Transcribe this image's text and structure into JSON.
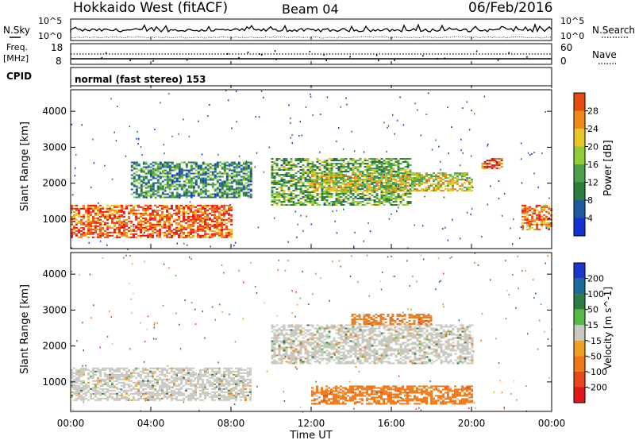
{
  "header": {
    "station": "Hokkaido West (fitACF)",
    "beam": "Beam 04",
    "date": "06/Feb/2016"
  },
  "noise_panel": {
    "left_label": "N.Sky",
    "right_label": "N.Search",
    "top_tick": "10^5",
    "bottom_tick": "10^0"
  },
  "freq_panel": {
    "left_label_line1": "Freq.",
    "left_label_line2": "[MHz]",
    "left_top_tick": "18",
    "left_bottom_tick": "8",
    "right_label": "Nave",
    "right_top_tick": "60",
    "right_bottom_tick": "0"
  },
  "cpid_panel": {
    "label": "CPID",
    "text": "normal (fast stereo) 153"
  },
  "x_axis": {
    "label": "Time UT",
    "ticks": [
      "00:00",
      "04:00",
      "08:00",
      "12:00",
      "16:00",
      "20:00",
      "00:00"
    ]
  },
  "colors": {
    "power_scale": [
      "#1432d2",
      "#1e5aa0",
      "#2d7d3c",
      "#4aa14a",
      "#8fce3a",
      "#e8c62a",
      "#f08a1a",
      "#e84a14",
      "#e81414"
    ],
    "velocity_scale": [
      "#1b36c8",
      "#1c6a9c",
      "#2e7d46",
      "#58b848",
      "#c8c8c0",
      "#f0a020",
      "#f07818",
      "#e84818",
      "#e01818"
    ]
  },
  "chart_data": [
    {
      "type": "heatmap",
      "panel": "power",
      "ylabel": "Slant Range [km]",
      "xlabel": "Time UT",
      "ylim": [
        180,
        4600
      ],
      "yticks": [
        1000,
        2000,
        3000,
        4000
      ],
      "xlim_hours": [
        0,
        24
      ],
      "colorbar": {
        "label": "Power [dB]",
        "ticks": [
          "4",
          "8",
          "12",
          "16",
          "20",
          "24",
          "28"
        ],
        "range": [
          0,
          32
        ]
      },
      "regions_approx": [
        {
          "hours": [
            0,
            8
          ],
          "range_km": [
            500,
            1400
          ],
          "power_db": 26
        },
        {
          "hours": [
            3,
            9
          ],
          "range_km": [
            1600,
            2600
          ],
          "power_db": 10
        },
        {
          "hours": [
            10,
            17
          ],
          "range_km": [
            1400,
            2700
          ],
          "power_db": 13
        },
        {
          "hours": [
            12,
            20
          ],
          "range_km": [
            1800,
            2300
          ],
          "power_db": 18
        },
        {
          "hours": [
            20.5,
            21.5
          ],
          "range_km": [
            2400,
            2700
          ],
          "power_db": 26
        },
        {
          "hours": [
            22.5,
            24
          ],
          "range_km": [
            700,
            1400
          ],
          "power_db": 24
        }
      ]
    },
    {
      "type": "heatmap",
      "panel": "velocity",
      "ylabel": "Slant Range [km]",
      "xlabel": "Time UT",
      "ylim": [
        180,
        4600
      ],
      "yticks": [
        1000,
        2000,
        3000,
        4000
      ],
      "xlim_hours": [
        0,
        24
      ],
      "colorbar": {
        "label": "Velocity [m s^-1]",
        "ticks": [
          "200",
          "100",
          "50",
          "15",
          "-15",
          "-50",
          "-100",
          "-200"
        ],
        "range": [
          -250,
          250
        ]
      },
      "regions_approx": [
        {
          "hours": [
            0,
            9
          ],
          "range_km": [
            500,
            1400
          ],
          "velocity": 0
        },
        {
          "hours": [
            10,
            20
          ],
          "range_km": [
            1500,
            2600
          ],
          "velocity": 0
        },
        {
          "hours": [
            14,
            18
          ],
          "range_km": [
            2600,
            2900
          ],
          "velocity": -60
        },
        {
          "hours": [
            12,
            20
          ],
          "range_km": [
            400,
            900
          ],
          "velocity": -60
        }
      ]
    }
  ]
}
